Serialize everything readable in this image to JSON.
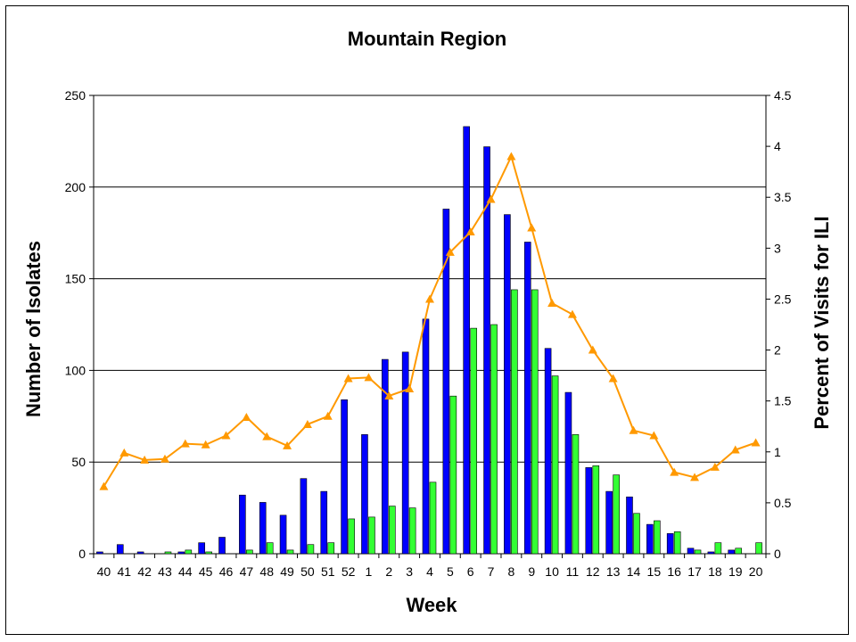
{
  "chart_data": {
    "type": "bar",
    "title": "Mountain Region",
    "xlabel": "Week",
    "ylabel": "Number of Isolates",
    "y2label": "Percent of Visits for ILI",
    "ylim": [
      0,
      250
    ],
    "y2lim": [
      0,
      4.5
    ],
    "yticks": [
      0,
      50,
      100,
      150,
      200,
      250
    ],
    "y2ticks": [
      0,
      0.5,
      1,
      1.5,
      2,
      2.5,
      3,
      3.5,
      4,
      4.5
    ],
    "grid": true,
    "categories": [
      "40",
      "41",
      "42",
      "43",
      "44",
      "45",
      "46",
      "47",
      "48",
      "49",
      "50",
      "51",
      "52",
      "1",
      "2",
      "3",
      "4",
      "5",
      "6",
      "7",
      "8",
      "9",
      "10",
      "11",
      "12",
      "13",
      "14",
      "15",
      "16",
      "17",
      "18",
      "19",
      "20"
    ],
    "series": [
      {
        "type": "bar",
        "axis": "left",
        "color": "#0000ff",
        "values": [
          1,
          5,
          1,
          0,
          1,
          6,
          9,
          32,
          28,
          21,
          41,
          34,
          84,
          65,
          106,
          110,
          128,
          188,
          233,
          222,
          185,
          170,
          112,
          88,
          47,
          34,
          31,
          16,
          11,
          3,
          1,
          2,
          0
        ]
      },
      {
        "type": "bar",
        "axis": "left",
        "color": "#33ff33",
        "values": [
          0,
          0,
          0,
          1,
          2,
          1,
          0,
          2,
          6,
          2,
          5,
          6,
          19,
          20,
          26,
          25,
          39,
          86,
          123,
          125,
          144,
          144,
          97,
          65,
          48,
          43,
          22,
          18,
          12,
          2,
          6,
          3,
          6
        ]
      },
      {
        "type": "line",
        "axis": "right",
        "color": "#ff9900",
        "marker": "triangle",
        "values": [
          0.66,
          0.99,
          0.92,
          0.93,
          1.08,
          1.07,
          1.16,
          1.34,
          1.15,
          1.06,
          1.27,
          1.35,
          1.72,
          1.73,
          1.55,
          1.62,
          2.5,
          2.96,
          3.16,
          3.48,
          3.9,
          3.2,
          2.46,
          2.35,
          2.0,
          1.72,
          1.21,
          1.16,
          0.8,
          0.75,
          0.85,
          1.02,
          1.09
        ]
      }
    ]
  }
}
